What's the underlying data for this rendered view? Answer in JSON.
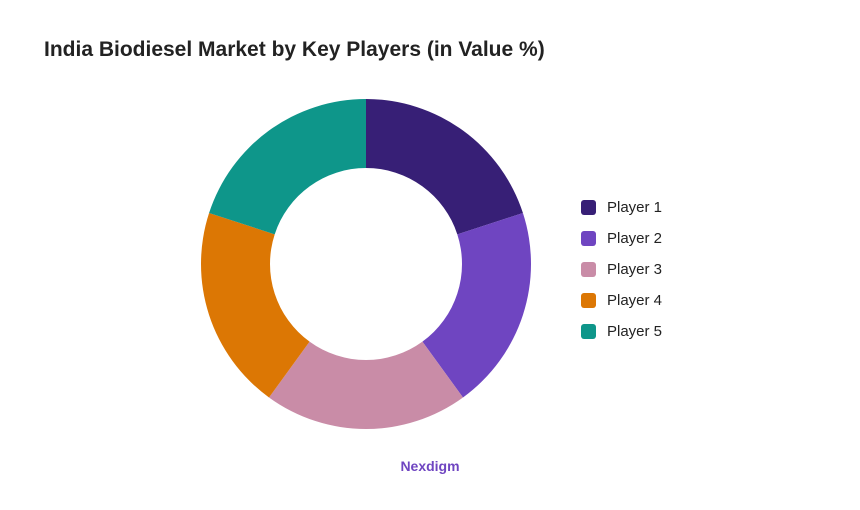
{
  "chart_data": {
    "type": "pie",
    "title": "India Biodiesel Market by Key Players (in Value %)",
    "donut": true,
    "categories": [
      "Player 1",
      "Player 2",
      "Player 3",
      "Player 4",
      "Player 5"
    ],
    "values": [
      20,
      20,
      20,
      20,
      20
    ],
    "colors": [
      "#371f76",
      "#6f45c1",
      "#c98ca7",
      "#dc7704",
      "#0e968a"
    ],
    "legend": "right"
  },
  "source": {
    "text": "Nexdigm",
    "color": "#6f45c1"
  }
}
